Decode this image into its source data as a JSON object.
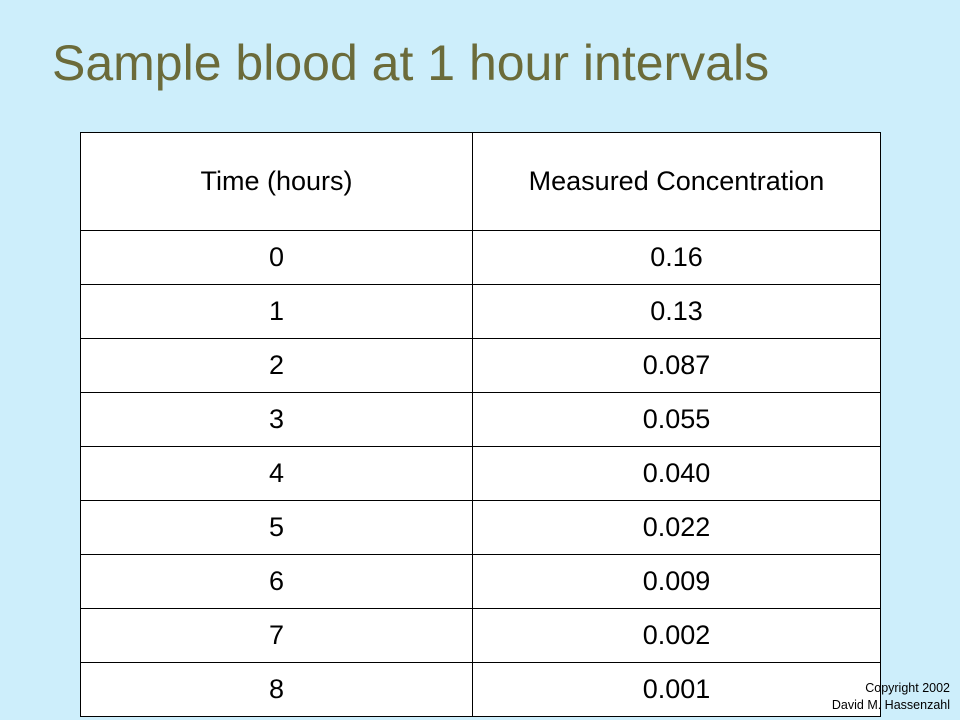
{
  "slide": {
    "title": "Sample blood at 1 hour intervals"
  },
  "table": {
    "headers": [
      "Time (hours)",
      "Measured Concentration"
    ],
    "rows": [
      [
        "0",
        "0.16"
      ],
      [
        "1",
        "0.13"
      ],
      [
        "2",
        "0.087"
      ],
      [
        "3",
        "0.055"
      ],
      [
        "4",
        "0.040"
      ],
      [
        "5",
        "0.022"
      ],
      [
        "6",
        "0.009"
      ],
      [
        "7",
        "0.002"
      ],
      [
        "8",
        "0.001"
      ]
    ]
  },
  "footer": {
    "copyright_line1": "Copyright 2002",
    "copyright_line2": "David M. Hassenzahl"
  },
  "colors": {
    "background": "#cdeefb",
    "title": "#6b6b3a",
    "table_background": "#ffffff",
    "border": "#000000"
  }
}
